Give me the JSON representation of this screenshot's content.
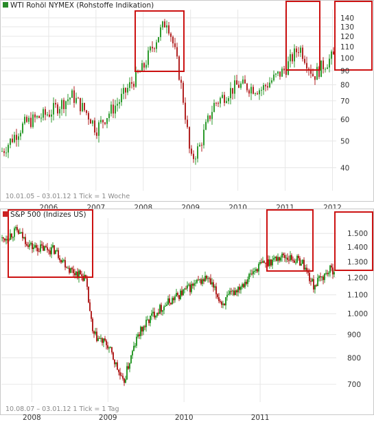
{
  "chart_data": [
    {
      "type": "candlestick",
      "title": "WTI Rohöl NYMEX (Rohstoffe Indikation)",
      "footnote": "10.01.05 – 03.01.12   1 Tick = 1 Woche",
      "x_tick_labels": [
        "2006",
        "2007",
        "2008",
        "2009",
        "2010",
        "2011",
        "2012"
      ],
      "y_tick_labels": [
        "140",
        "130",
        "120",
        "110",
        "100",
        "90",
        "80",
        "70",
        "60",
        "50",
        "40"
      ],
      "y_scale": "log",
      "ylim": [
        33,
        150
      ],
      "x_range": [
        "2005-01",
        "2012-01"
      ],
      "grid": true,
      "series": [
        {
          "x": [
            2005.03,
            2005.5,
            2006.0,
            2006.5,
            2006.9,
            2007.0,
            2007.5,
            2008.0,
            2008.5,
            2008.9,
            2009.0,
            2009.2,
            2009.5,
            2010.0,
            2010.5,
            2011.0,
            2011.3,
            2011.6,
            2011.8,
            2012.0
          ],
          "y": [
            46,
            58,
            63,
            73,
            60,
            55,
            70,
            92,
            138,
            60,
            42,
            48,
            68,
            80,
            77,
            91,
            110,
            86,
            94,
            101
          ]
        }
      ],
      "highlight_boxes": [
        "Mär 2008 – Aug 2008",
        "Nov 2010 – Mai 2011",
        "Sep 2011 – Jan 2012"
      ]
    },
    {
      "type": "candlestick",
      "title": "S&P 500 (Indizes US)",
      "footnote": "10.08.07 – 03.01.12   1 Tick = 1 Tag",
      "x_tick_labels": [
        "2008",
        "2009",
        "2010",
        "2011"
      ],
      "y_tick_labels": [
        "1.500",
        "1.400",
        "1.300",
        "1.200",
        "1.100",
        "1.000",
        "900",
        "800",
        "700"
      ],
      "y_scale": "log",
      "ylim": [
        640,
        1620
      ],
      "x_range": [
        "2007-08",
        "2012-01"
      ],
      "grid": true,
      "series": [
        {
          "x": [
            2007.6,
            2007.8,
            2008.0,
            2008.3,
            2008.5,
            2008.7,
            2008.8,
            2009.0,
            2009.2,
            2009.4,
            2009.6,
            2010.0,
            2010.3,
            2010.5,
            2010.8,
            2011.0,
            2011.3,
            2011.55,
            2011.7,
            2011.9,
            2012.0
          ],
          "y": [
            1450,
            1520,
            1400,
            1380,
            1250,
            1200,
            900,
            850,
            700,
            900,
            1000,
            1120,
            1200,
            1050,
            1180,
            1280,
            1340,
            1300,
            1150,
            1240,
            1260
          ]
        }
      ],
      "highlight_boxes": [
        "Aug 2007 – Jul 2008",
        "Jan 2011 – Jun 2011",
        "Sep 2011 – Jan 2012"
      ]
    }
  ]
}
